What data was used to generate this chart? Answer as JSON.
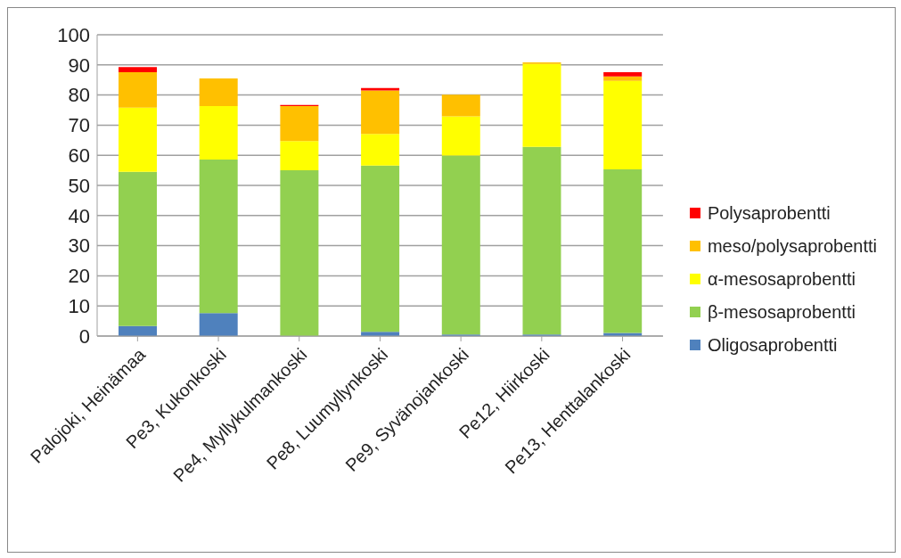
{
  "chart_data": {
    "type": "bar",
    "stacked": true,
    "categories": [
      "Palojoki, Heinämaa",
      "Pe3, Kukonkoski",
      "Pe4, Myllykulmankoski",
      "Pe8, Luumyllynkoski",
      "Pe9, Syvänojankoski",
      "Pe12, Hiirkoski",
      "Pe13, Henttalankoski"
    ],
    "series": [
      {
        "name": "Oligosaprobentti",
        "color": "#4f81bd",
        "values": [
          3.3,
          7.6,
          0,
          1.4,
          0.5,
          0.5,
          1.0
        ]
      },
      {
        "name": "β-mesosaprobentti",
        "color": "#92d050",
        "values": [
          51.2,
          51.0,
          55.0,
          55.2,
          59.4,
          62.3,
          54.3
        ]
      },
      {
        "name": "α-mesosaprobentti",
        "color": "#ffff00",
        "values": [
          21.3,
          17.7,
          9.7,
          10.5,
          13.0,
          27.5,
          29.4
        ]
      },
      {
        "name": "meso/polysaprobentti",
        "color": "#ffc000",
        "values": [
          11.8,
          9.2,
          11.6,
          14.4,
          7.2,
          0.5,
          1.5
        ]
      },
      {
        "name": "Polysaprobentti",
        "color": "#ff0000",
        "values": [
          1.7,
          0,
          0.4,
          0.8,
          0,
          0,
          1.4
        ]
      }
    ],
    "ylim": [
      0,
      100
    ],
    "yticks": [
      0,
      10,
      20,
      30,
      40,
      50,
      60,
      70,
      80,
      90,
      100
    ],
    "grid": "y",
    "legend": "right"
  }
}
